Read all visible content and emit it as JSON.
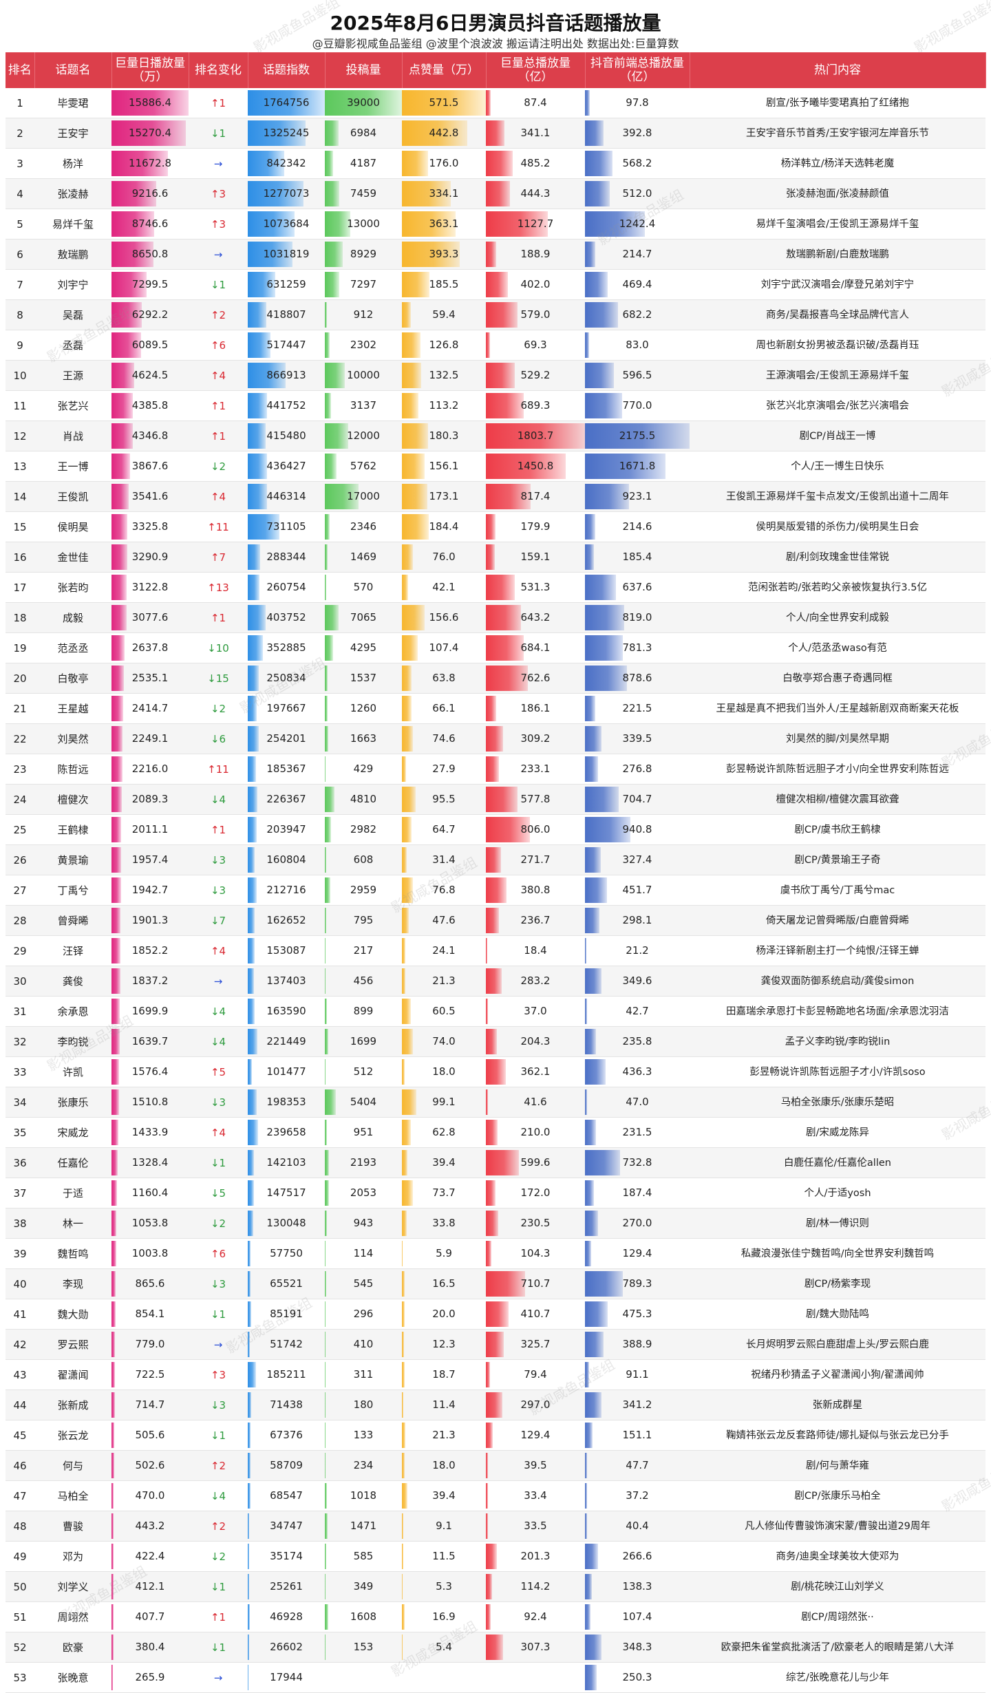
{
  "title": "2025年8月6日男演员抖音话题播放量",
  "subtitle": "@豆瓣影视咸鱼品鉴组 @波里个浪波波  搬运请注明出处  数据出处:巨量算数",
  "watermark": "影视咸鱼品鉴组",
  "colors": {
    "header": "#dc3f4b",
    "daily": "#e0247e",
    "index": "#2e8fe6",
    "posts": "#5cc85c",
    "likes": "#f7b62d",
    "total": "#ee3c48",
    "front": "#4a6fc6",
    "up": "#d9262f",
    "down": "#2c9a3c",
    "flat": "#2b4fd6"
  },
  "chart_data": {
    "type": "table",
    "columns": [
      "排名",
      "话题名",
      "巨量日播放量\n（万）",
      "排名变化",
      "话题指数",
      "投稿量",
      "点赞量（万）",
      "巨量总播放量\n（亿）",
      "抖音前端总播放量\n（亿）",
      "热门内容"
    ],
    "rows": [
      {
        "rank": "1",
        "name": "毕雯珺",
        "daily": 15886.4,
        "change_dir": "up",
        "change": "1",
        "index": 1764756,
        "posts": 39000,
        "likes": 571.5,
        "total": 87.4,
        "front": 97.8,
        "hot": "剧宣/张予曦毕雯珺真拍了红绪抱"
      },
      {
        "rank": "2",
        "name": "王安宇",
        "daily": 15270.4,
        "change_dir": "down",
        "change": "1",
        "index": 1325245,
        "posts": 6984,
        "likes": 442.8,
        "total": 341.1,
        "front": 392.8,
        "hot": "王安宇音乐节首秀/王安宇银河左岸音乐节"
      },
      {
        "rank": "3",
        "name": "杨洋",
        "daily": 11672.8,
        "change_dir": "flat",
        "change": "",
        "index": 842342,
        "posts": 4187,
        "likes": 176.0,
        "total": 485.2,
        "front": 568.2,
        "hot": "杨洋韩立/杨洋天选韩老魔"
      },
      {
        "rank": "4",
        "name": "张凌赫",
        "daily": 9216.6,
        "change_dir": "up",
        "change": "3",
        "index": 1277073,
        "posts": 7459,
        "likes": 334.1,
        "total": 444.3,
        "front": 512.0,
        "hot": "张凌赫泡面/张凌赫颜值"
      },
      {
        "rank": "5",
        "name": "易烊千玺",
        "daily": 8746.6,
        "change_dir": "up",
        "change": "3",
        "index": 1073684,
        "posts": 13000,
        "likes": 363.1,
        "total": 1127.7,
        "front": 1242.4,
        "hot": "易烊千玺演唱会/王俊凯王源易烊千玺"
      },
      {
        "rank": "6",
        "name": "敖瑞鹏",
        "daily": 8650.8,
        "change_dir": "flat",
        "change": "",
        "index": 1031819,
        "posts": 8929,
        "likes": 393.3,
        "total": 188.9,
        "front": 214.7,
        "hot": "敖瑞鹏新剧/白鹿敖瑞鹏"
      },
      {
        "rank": "7",
        "name": "刘宇宁",
        "daily": 7299.5,
        "change_dir": "down",
        "change": "1",
        "index": 631259,
        "posts": 7297,
        "likes": 185.5,
        "total": 402.0,
        "front": 469.4,
        "hot": "刘宇宁武汉演唱会/摩登兄弟刘宇宁"
      },
      {
        "rank": "8",
        "name": "吴磊",
        "daily": 6292.2,
        "change_dir": "up",
        "change": "2",
        "index": 418807,
        "posts": 912,
        "likes": 59.4,
        "total": 579.0,
        "front": 682.2,
        "hot": "商务/吴磊报喜鸟全球品牌代言人"
      },
      {
        "rank": "9",
        "name": "丞磊",
        "daily": 6089.5,
        "change_dir": "up",
        "change": "6",
        "index": 517447,
        "posts": 2302,
        "likes": 126.8,
        "total": 69.3,
        "front": 83.0,
        "hot": "周也新剧女扮男被丞磊识破/丞磊肖珏"
      },
      {
        "rank": "10",
        "name": "王源",
        "daily": 4624.5,
        "change_dir": "up",
        "change": "4",
        "index": 866913,
        "posts": 10000,
        "likes": 132.5,
        "total": 529.2,
        "front": 596.5,
        "hot": "王源演唱会/王俊凯王源易烊千玺"
      },
      {
        "rank": "11",
        "name": "张艺兴",
        "daily": 4385.8,
        "change_dir": "up",
        "change": "1",
        "index": 441752,
        "posts": 3137,
        "likes": 113.2,
        "total": 689.3,
        "front": 770.0,
        "hot": "张艺兴北京演唱会/张艺兴演唱会"
      },
      {
        "rank": "12",
        "name": "肖战",
        "daily": 4346.8,
        "change_dir": "up",
        "change": "1",
        "index": 415480,
        "posts": 12000,
        "likes": 180.3,
        "total": 1803.7,
        "front": 2175.5,
        "hot": "剧CP/肖战王一博"
      },
      {
        "rank": "13",
        "name": "王一博",
        "daily": 3867.6,
        "change_dir": "down",
        "change": "2",
        "index": 436427,
        "posts": 5762,
        "likes": 156.1,
        "total": 1450.8,
        "front": 1671.8,
        "hot": "个人/王一博生日快乐"
      },
      {
        "rank": "14",
        "name": "王俊凯",
        "daily": 3541.6,
        "change_dir": "up",
        "change": "4",
        "index": 446314,
        "posts": 17000,
        "likes": 173.1,
        "total": 817.4,
        "front": 923.1,
        "hot": "王俊凯王源易烊千玺卡点发文/王俊凯出道十二周年"
      },
      {
        "rank": "15",
        "name": "侯明昊",
        "daily": 3325.8,
        "change_dir": "up",
        "change": "11",
        "index": 731105,
        "posts": 2346,
        "likes": 184.4,
        "total": 179.9,
        "front": 214.6,
        "hot": "侯明昊版爱错的杀伤力/侯明昊生日会"
      },
      {
        "rank": "16",
        "name": "金世佳",
        "daily": 3290.9,
        "change_dir": "up",
        "change": "7",
        "index": 288344,
        "posts": 1469,
        "likes": 76.0,
        "total": 159.1,
        "front": 185.4,
        "hot": "剧/利剑玫瑰金世佳常锐"
      },
      {
        "rank": "17",
        "name": "张若昀",
        "daily": 3122.8,
        "change_dir": "up",
        "change": "13",
        "index": 260754,
        "posts": 570,
        "likes": 42.1,
        "total": 531.3,
        "front": 637.6,
        "hot": "范闲张若昀/张若昀父亲被恢复执行3.5亿"
      },
      {
        "rank": "18",
        "name": "成毅",
        "daily": 3077.6,
        "change_dir": "up",
        "change": "1",
        "index": 403752,
        "posts": 7065,
        "likes": 156.6,
        "total": 643.2,
        "front": 819.0,
        "hot": "个人/向全世界安利成毅"
      },
      {
        "rank": "19",
        "name": "范丞丞",
        "daily": 2637.8,
        "change_dir": "down",
        "change": "10",
        "index": 352885,
        "posts": 4295,
        "likes": 107.4,
        "total": 684.1,
        "front": 781.3,
        "hot": "个人/范丞丞waso有范"
      },
      {
        "rank": "20",
        "name": "白敬亭",
        "daily": 2535.1,
        "change_dir": "down",
        "change": "15",
        "index": 250834,
        "posts": 1537,
        "likes": 63.8,
        "total": 762.6,
        "front": 878.6,
        "hot": "白敬亭郑合惠子奇遇同框"
      },
      {
        "rank": "21",
        "name": "王星越",
        "daily": 2414.7,
        "change_dir": "down",
        "change": "2",
        "index": 197667,
        "posts": 1260,
        "likes": 66.1,
        "total": 186.1,
        "front": 221.5,
        "hot": "王星越是真不把我们当外人/王星越新剧双商断案天花板"
      },
      {
        "rank": "22",
        "name": "刘昊然",
        "daily": 2249.1,
        "change_dir": "down",
        "change": "6",
        "index": 254201,
        "posts": 1663,
        "likes": 74.6,
        "total": 309.2,
        "front": 339.5,
        "hot": "刘昊然的脚/刘昊然早期"
      },
      {
        "rank": "23",
        "name": "陈哲远",
        "daily": 2216.0,
        "change_dir": "up",
        "change": "11",
        "index": 185367,
        "posts": 429,
        "likes": 27.9,
        "total": 233.1,
        "front": 276.8,
        "hot": "彭昱畅说许凯陈哲远胆子才小/向全世界安利陈哲远"
      },
      {
        "rank": "24",
        "name": "檀健次",
        "daily": 2089.3,
        "change_dir": "down",
        "change": "4",
        "index": 226367,
        "posts": 4810,
        "likes": 95.5,
        "total": 577.8,
        "front": 704.7,
        "hot": "檀健次相柳/檀健次震耳欲聋"
      },
      {
        "rank": "25",
        "name": "王鹤棣",
        "daily": 2011.1,
        "change_dir": "up",
        "change": "1",
        "index": 203947,
        "posts": 2982,
        "likes": 64.7,
        "total": 806.0,
        "front": 940.8,
        "hot": "剧CP/虞书欣王鹤棣"
      },
      {
        "rank": "26",
        "name": "黄景瑜",
        "daily": 1957.4,
        "change_dir": "down",
        "change": "3",
        "index": 160804,
        "posts": 608,
        "likes": 31.4,
        "total": 271.7,
        "front": 327.4,
        "hot": "剧CP/黄景瑜王子奇"
      },
      {
        "rank": "27",
        "name": "丁禹兮",
        "daily": 1942.7,
        "change_dir": "down",
        "change": "3",
        "index": 212716,
        "posts": 2959,
        "likes": 76.8,
        "total": 380.8,
        "front": 451.7,
        "hot": "虞书欣丁禹兮/丁禹兮mac"
      },
      {
        "rank": "28",
        "name": "曾舜晞",
        "daily": 1901.3,
        "change_dir": "down",
        "change": "7",
        "index": 162652,
        "posts": 795,
        "likes": 47.6,
        "total": 236.7,
        "front": 298.1,
        "hot": "倚天屠龙记曾舜晞版/白鹿曾舜晞"
      },
      {
        "rank": "29",
        "name": "汪铎",
        "daily": 1852.2,
        "change_dir": "up",
        "change": "4",
        "index": 153087,
        "posts": 217,
        "likes": 24.1,
        "total": 18.4,
        "front": 21.2,
        "hot": "杨泽汪铎新剧主打一个纯恨/汪铎王蝉"
      },
      {
        "rank": "30",
        "name": "龚俊",
        "daily": 1837.2,
        "change_dir": "flat",
        "change": "",
        "index": 137403,
        "posts": 456,
        "likes": 21.3,
        "total": 283.2,
        "front": 349.6,
        "hot": "龚俊双面防御系统启动/龚俊simon"
      },
      {
        "rank": "31",
        "name": "余承恩",
        "daily": 1699.9,
        "change_dir": "down",
        "change": "4",
        "index": 163590,
        "posts": 899,
        "likes": 60.5,
        "total": 37.0,
        "front": 42.7,
        "hot": "田嘉瑞余承恩打卡彭昱畅跪地名场面/余承恩沈羽洁"
      },
      {
        "rank": "32",
        "name": "李昀锐",
        "daily": 1639.7,
        "change_dir": "down",
        "change": "4",
        "index": 221449,
        "posts": 1699,
        "likes": 74.0,
        "total": 204.3,
        "front": 235.8,
        "hot": "孟子义李昀锐/李昀锐lin"
      },
      {
        "rank": "33",
        "name": "许凯",
        "daily": 1576.4,
        "change_dir": "up",
        "change": "5",
        "index": 101477,
        "posts": 512,
        "likes": 18.0,
        "total": 362.1,
        "front": 436.3,
        "hot": "彭昱畅说许凯陈哲远胆子才小/许凯soso"
      },
      {
        "rank": "34",
        "name": "张康乐",
        "daily": 1510.8,
        "change_dir": "down",
        "change": "3",
        "index": 198353,
        "posts": 5404,
        "likes": 99.1,
        "total": 41.6,
        "front": 47.0,
        "hot": "马柏全张康乐/张康乐楚昭"
      },
      {
        "rank": "35",
        "name": "宋威龙",
        "daily": 1433.9,
        "change_dir": "up",
        "change": "4",
        "index": 239658,
        "posts": 951,
        "likes": 62.8,
        "total": 210.0,
        "front": 231.5,
        "hot": "剧/宋威龙陈异"
      },
      {
        "rank": "36",
        "name": "任嘉伦",
        "daily": 1328.4,
        "change_dir": "down",
        "change": "1",
        "index": 142103,
        "posts": 2193,
        "likes": 39.4,
        "total": 599.6,
        "front": 732.8,
        "hot": "白鹿任嘉伦/任嘉伦allen"
      },
      {
        "rank": "37",
        "name": "于适",
        "daily": 1160.4,
        "change_dir": "down",
        "change": "5",
        "index": 147517,
        "posts": 2053,
        "likes": 73.7,
        "total": 172.0,
        "front": 187.4,
        "hot": "个人/于适yosh"
      },
      {
        "rank": "38",
        "name": "林一",
        "daily": 1053.8,
        "change_dir": "down",
        "change": "2",
        "index": 130048,
        "posts": 943,
        "likes": 33.8,
        "total": 230.5,
        "front": 270.0,
        "hot": "剧/林一傅识则"
      },
      {
        "rank": "39",
        "name": "魏哲鸣",
        "daily": 1003.8,
        "change_dir": "up",
        "change": "6",
        "index": 57750,
        "posts": 114,
        "likes": 5.9,
        "total": 104.3,
        "front": 129.4,
        "hot": "私藏浪漫张佳宁魏哲鸣/向全世界安利魏哲鸣"
      },
      {
        "rank": "40",
        "name": "李现",
        "daily": 865.6,
        "change_dir": "down",
        "change": "3",
        "index": 65521,
        "posts": 545,
        "likes": 16.5,
        "total": 710.7,
        "front": 789.3,
        "hot": "剧CP/杨紫李现"
      },
      {
        "rank": "41",
        "name": "魏大勋",
        "daily": 854.1,
        "change_dir": "down",
        "change": "1",
        "index": 85191,
        "posts": 296,
        "likes": 20.0,
        "total": 410.7,
        "front": 475.3,
        "hot": "剧/魏大勋陆鸣"
      },
      {
        "rank": "42",
        "name": "罗云熙",
        "daily": 779.0,
        "change_dir": "flat",
        "change": "",
        "index": 51742,
        "posts": 410,
        "likes": 12.3,
        "total": 325.7,
        "front": 388.9,
        "hot": "长月烬明罗云熙白鹿甜虐上头/罗云熙白鹿"
      },
      {
        "rank": "43",
        "name": "翟潇闻",
        "daily": 722.5,
        "change_dir": "up",
        "change": "3",
        "index": 185211,
        "posts": 311,
        "likes": 18.7,
        "total": 79.4,
        "front": 91.1,
        "hot": "祝绪丹秒猜孟子义翟潇闻小狗/翟潇闻帅"
      },
      {
        "rank": "44",
        "name": "张新成",
        "daily": 714.7,
        "change_dir": "down",
        "change": "3",
        "index": 71438,
        "posts": 180,
        "likes": 11.4,
        "total": 297.0,
        "front": 341.2,
        "hot": "张新成群星"
      },
      {
        "rank": "45",
        "name": "张云龙",
        "daily": 505.6,
        "change_dir": "down",
        "change": "1",
        "index": 67376,
        "posts": 133,
        "likes": 21.3,
        "total": 129.4,
        "front": 151.1,
        "hot": "鞠婧祎张云龙反套路师徒/娜扎疑似与张云龙已分手"
      },
      {
        "rank": "46",
        "name": "何与",
        "daily": 502.6,
        "change_dir": "up",
        "change": "2",
        "index": 58709,
        "posts": 234,
        "likes": 18.0,
        "total": 39.5,
        "front": 47.7,
        "hot": "剧/何与萧华雍"
      },
      {
        "rank": "47",
        "name": "马柏全",
        "daily": 470.0,
        "change_dir": "down",
        "change": "4",
        "index": 68547,
        "posts": 1018,
        "likes": 39.4,
        "total": 33.4,
        "front": 37.2,
        "hot": "剧CP/张康乐马柏全"
      },
      {
        "rank": "48",
        "name": "曹骏",
        "daily": 443.2,
        "change_dir": "up",
        "change": "2",
        "index": 34747,
        "posts": 1471,
        "likes": 9.1,
        "total": 33.5,
        "front": 40.4,
        "hot": "凡人修仙传曹骏饰演宋蒙/曹骏出道29周年"
      },
      {
        "rank": "49",
        "name": "邓为",
        "daily": 422.4,
        "change_dir": "down",
        "change": "2",
        "index": 35174,
        "posts": 585,
        "likes": 11.5,
        "total": 201.3,
        "front": 266.6,
        "hot": "商务/迪奥全球美妆大使邓为"
      },
      {
        "rank": "50",
        "name": "刘学义",
        "daily": 412.1,
        "change_dir": "down",
        "change": "1",
        "index": 25261,
        "posts": 349,
        "likes": 5.3,
        "total": 114.2,
        "front": 138.3,
        "hot": "剧/桃花映江山刘学义"
      },
      {
        "rank": "51",
        "name": "周翊然",
        "daily": 407.7,
        "change_dir": "up",
        "change": "1",
        "index": 46928,
        "posts": 1608,
        "likes": 16.9,
        "total": 92.4,
        "front": 107.4,
        "hot": "剧CP/周翊然张··"
      },
      {
        "rank": "52",
        "name": "欧豪",
        "daily": 380.4,
        "change_dir": "down",
        "change": "1",
        "index": 26602,
        "posts": 153,
        "likes": 5.4,
        "total": 307.3,
        "front": 348.3,
        "hot": "欧豪把朱雀堂疯批演活了/欧豪老人的眼睛是第八大洋"
      },
      {
        "rank": "53",
        "name": "张晚意",
        "daily": 265.9,
        "change_dir": "flat",
        "change": "",
        "index": 17944,
        "posts": "",
        "likes": "",
        "total": "",
        "front": 250.3,
        "hot": "综艺/张晚意花儿与少年"
      }
    ]
  }
}
